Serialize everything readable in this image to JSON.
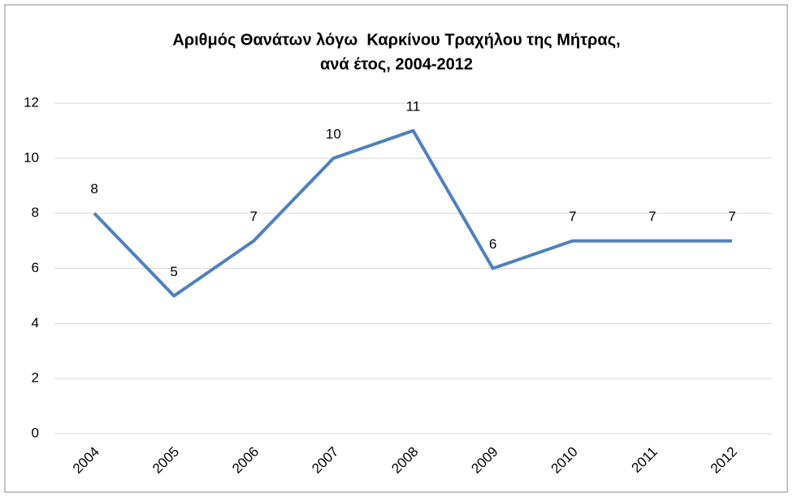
{
  "chart_data": {
    "type": "line",
    "title": [
      "Αριθμός Θανάτων λόγω  Καρκίνου Τραχήλου της Μήτρας,",
      "ανά έτος, 2004-2012"
    ],
    "categories": [
      "2004",
      "2005",
      "2006",
      "2007",
      "2008",
      "2009",
      "2010",
      "2011",
      "2012"
    ],
    "values": [
      8,
      5,
      7,
      10,
      11,
      6,
      7,
      7,
      7
    ],
    "color": "#4f81bd",
    "ylim": [
      0,
      12
    ],
    "yticks": [
      0,
      2,
      4,
      6,
      8,
      10,
      12
    ],
    "grid": true
  }
}
